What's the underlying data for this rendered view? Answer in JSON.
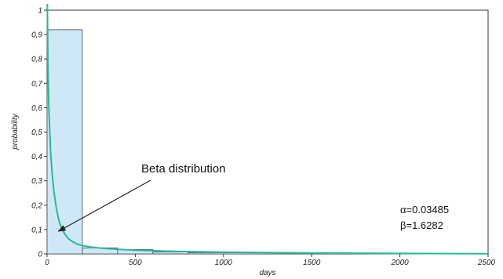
{
  "chart_data": {
    "type": "bar",
    "title": "",
    "xlabel": "days",
    "ylabel": "probability",
    "xlim": [
      0,
      2500
    ],
    "ylim": [
      0,
      1
    ],
    "x_ticks": [
      "0",
      "500",
      "1000",
      "1500",
      "2000",
      "2500"
    ],
    "y_ticks": [
      "0",
      "0,1",
      "0,2",
      "0,3",
      "0,4",
      "0,5",
      "0,6",
      "0,7",
      "0,8",
      "0,9",
      "1"
    ],
    "bins": [
      {
        "x0": 0,
        "x1": 200,
        "value": 0.92
      },
      {
        "x0": 200,
        "x1": 400,
        "value": 0.025
      },
      {
        "x0": 400,
        "x1": 600,
        "value": 0.018
      },
      {
        "x0": 600,
        "x1": 800,
        "value": 0.008
      },
      {
        "x0": 800,
        "x1": 1400,
        "value": 0.005
      },
      {
        "x0": 1400,
        "x1": 1700,
        "value": 0.003
      },
      {
        "x0": 1700,
        "x1": 2500,
        "value": 0.001
      }
    ],
    "fit_curve": {
      "x": [
        2,
        5,
        10,
        20,
        30,
        40,
        50,
        60,
        70,
        80,
        90,
        100,
        120,
        140,
        160,
        180,
        200,
        250,
        300,
        400,
        500,
        700,
        1000,
        1500,
        2000,
        2500
      ],
      "y": [
        1.0,
        0.78,
        0.6,
        0.42,
        0.32,
        0.25,
        0.2,
        0.16,
        0.13,
        0.11,
        0.095,
        0.082,
        0.063,
        0.052,
        0.044,
        0.038,
        0.034,
        0.028,
        0.024,
        0.019,
        0.015,
        0.011,
        0.007,
        0.004,
        0.002,
        0.0005
      ]
    },
    "annotation": {
      "text": "Beta distribution",
      "target_x": 100,
      "target_y": 0.08
    },
    "params": [
      "α=0.03485",
      "β=1.6282"
    ],
    "grid": false,
    "colors": {
      "bar_fill": "#cfe8f8",
      "bar_stroke": "#3a4a5a",
      "curve": "#2bb89a",
      "axis": "#333333"
    }
  }
}
